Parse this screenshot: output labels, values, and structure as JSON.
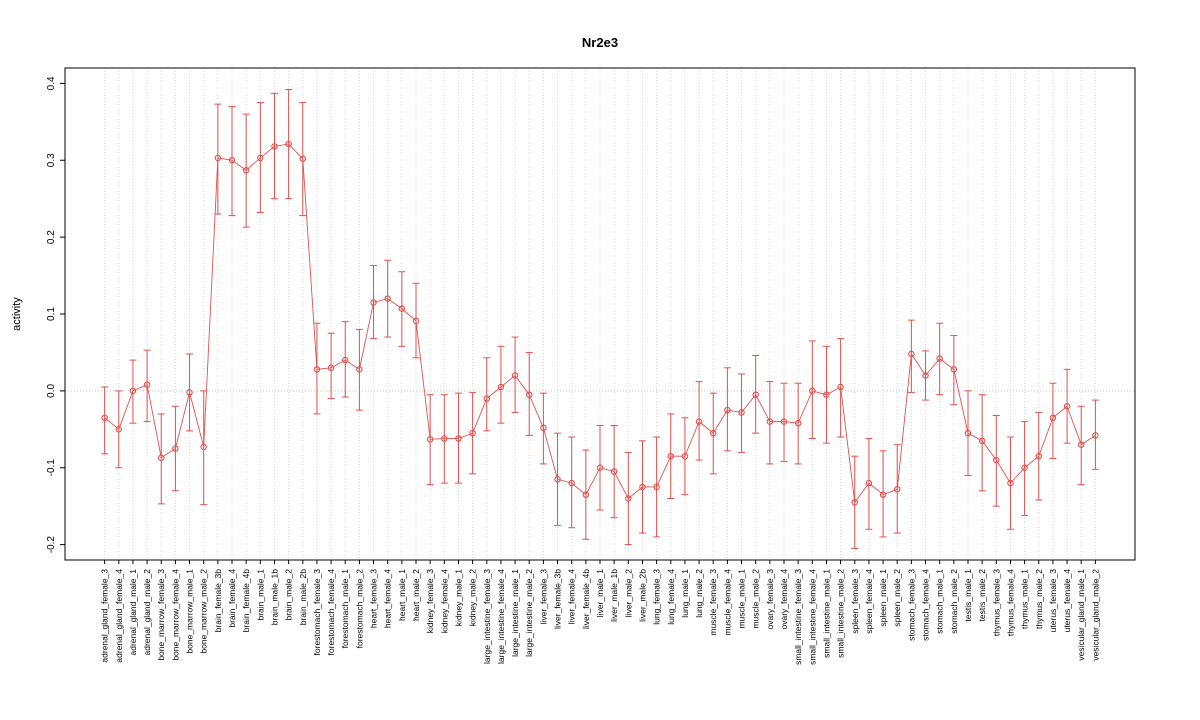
{
  "chart_data": {
    "type": "line",
    "title": "Nr2e3",
    "xlabel": "",
    "ylabel": "activity",
    "ylim": [
      -0.22,
      0.42
    ],
    "yticks": [
      "-0.2",
      "-0.1",
      "0.0",
      "0.1",
      "0.2",
      "0.3",
      "0.4"
    ],
    "legend": "none",
    "grid": "dotted vertical gridline per category; dotted horizontal line at y=0",
    "marker": "open-circle with error bars",
    "colors": {
      "series": "#e0514e",
      "grid": "#d6d6d6",
      "zero_line": "#c4c4c4",
      "axis": "#000000",
      "background": "#ffffff"
    },
    "points": [
      {
        "label": "adrenal_gland_female_3",
        "value": -0.035,
        "lo": -0.082,
        "hi": 0.005
      },
      {
        "label": "adrenal_gland_female_4",
        "value": -0.05,
        "lo": -0.1,
        "hi": 0.0
      },
      {
        "label": "adrenal_gland_male_1",
        "value": 0.0,
        "lo": -0.042,
        "hi": 0.04
      },
      {
        "label": "adrenal_gland_male_2",
        "value": 0.008,
        "lo": -0.04,
        "hi": 0.053
      },
      {
        "label": "bone_marrow_female_3",
        "value": -0.087,
        "lo": -0.147,
        "hi": -0.03
      },
      {
        "label": "bone_marrow_female_4",
        "value": -0.075,
        "lo": -0.13,
        "hi": -0.02
      },
      {
        "label": "bone_marrow_male_1",
        "value": -0.002,
        "lo": -0.052,
        "hi": 0.048
      },
      {
        "label": "bone_marrow_male_2",
        "value": -0.073,
        "lo": -0.148,
        "hi": 0.0
      },
      {
        "label": "brain_female_3b",
        "value": 0.303,
        "lo": 0.23,
        "hi": 0.373
      },
      {
        "label": "brain_female_4",
        "value": 0.3,
        "lo": 0.228,
        "hi": 0.37
      },
      {
        "label": "brain_female_4b",
        "value": 0.287,
        "lo": 0.213,
        "hi": 0.36
      },
      {
        "label": "brain_male_1",
        "value": 0.303,
        "lo": 0.232,
        "hi": 0.375
      },
      {
        "label": "brain_male_1b",
        "value": 0.318,
        "lo": 0.25,
        "hi": 0.387
      },
      {
        "label": "brain_male_2",
        "value": 0.321,
        "lo": 0.25,
        "hi": 0.392
      },
      {
        "label": "brain_male_2b",
        "value": 0.302,
        "lo": 0.228,
        "hi": 0.375
      },
      {
        "label": "forestomach_female_3",
        "value": 0.028,
        "lo": -0.03,
        "hi": 0.088
      },
      {
        "label": "forestomach_female_4",
        "value": 0.03,
        "lo": -0.01,
        "hi": 0.075
      },
      {
        "label": "forestomach_male_1",
        "value": 0.04,
        "lo": -0.008,
        "hi": 0.09
      },
      {
        "label": "forestomach_male_2",
        "value": 0.028,
        "lo": -0.025,
        "hi": 0.08
      },
      {
        "label": "heart_female_3",
        "value": 0.115,
        "lo": 0.068,
        "hi": 0.163
      },
      {
        "label": "heart_female_4",
        "value": 0.12,
        "lo": 0.07,
        "hi": 0.17
      },
      {
        "label": "heart_male_1",
        "value": 0.107,
        "lo": 0.058,
        "hi": 0.155
      },
      {
        "label": "heart_male_2",
        "value": 0.091,
        "lo": 0.043,
        "hi": 0.14
      },
      {
        "label": "kidney_female_3",
        "value": -0.063,
        "lo": -0.122,
        "hi": -0.005
      },
      {
        "label": "kidney_female_4",
        "value": -0.062,
        "lo": -0.12,
        "hi": -0.005
      },
      {
        "label": "kidney_male_1",
        "value": -0.062,
        "lo": -0.12,
        "hi": -0.003
      },
      {
        "label": "kidney_male_2",
        "value": -0.055,
        "lo": -0.108,
        "hi": -0.002
      },
      {
        "label": "large_intestine_female_3",
        "value": -0.01,
        "lo": -0.052,
        "hi": 0.043
      },
      {
        "label": "large_intestine_female_4",
        "value": 0.005,
        "lo": -0.042,
        "hi": 0.058
      },
      {
        "label": "large_intestine_male_1",
        "value": 0.02,
        "lo": -0.028,
        "hi": 0.07
      },
      {
        "label": "large_intestine_male_2",
        "value": -0.005,
        "lo": -0.058,
        "hi": 0.05
      },
      {
        "label": "liver_female_3",
        "value": -0.048,
        "lo": -0.095,
        "hi": -0.003
      },
      {
        "label": "liver_female_3b",
        "value": -0.115,
        "lo": -0.175,
        "hi": -0.055
      },
      {
        "label": "liver_female_4",
        "value": -0.12,
        "lo": -0.178,
        "hi": -0.06
      },
      {
        "label": "liver_female_4b",
        "value": -0.135,
        "lo": -0.193,
        "hi": -0.077
      },
      {
        "label": "liver_male_1",
        "value": -0.1,
        "lo": -0.155,
        "hi": -0.045
      },
      {
        "label": "liver_male_1b",
        "value": -0.105,
        "lo": -0.165,
        "hi": -0.045
      },
      {
        "label": "liver_male_2",
        "value": -0.14,
        "lo": -0.2,
        "hi": -0.08
      },
      {
        "label": "liver_male_2b",
        "value": -0.125,
        "lo": -0.185,
        "hi": -0.065
      },
      {
        "label": "lung_female_3",
        "value": -0.125,
        "lo": -0.19,
        "hi": -0.06
      },
      {
        "label": "lung_female_4",
        "value": -0.085,
        "lo": -0.14,
        "hi": -0.03
      },
      {
        "label": "lung_male_1",
        "value": -0.085,
        "lo": -0.135,
        "hi": -0.035
      },
      {
        "label": "lung_male_2",
        "value": -0.04,
        "lo": -0.09,
        "hi": 0.012
      },
      {
        "label": "muscle_female_3",
        "value": -0.055,
        "lo": -0.108,
        "hi": -0.003
      },
      {
        "label": "muscle_female_4",
        "value": -0.025,
        "lo": -0.078,
        "hi": 0.03
      },
      {
        "label": "muscle_male_1",
        "value": -0.028,
        "lo": -0.08,
        "hi": 0.022
      },
      {
        "label": "muscle_male_2",
        "value": -0.005,
        "lo": -0.055,
        "hi": 0.046
      },
      {
        "label": "ovary_female_3",
        "value": -0.04,
        "lo": -0.095,
        "hi": 0.012
      },
      {
        "label": "ovary_female_4",
        "value": -0.04,
        "lo": -0.092,
        "hi": 0.01
      },
      {
        "label": "small_intestine_female_3",
        "value": -0.042,
        "lo": -0.095,
        "hi": 0.01
      },
      {
        "label": "small_intestine_female_4",
        "value": 0.0,
        "lo": -0.062,
        "hi": 0.065
      },
      {
        "label": "small_intestine_male_1",
        "value": -0.005,
        "lo": -0.068,
        "hi": 0.058
      },
      {
        "label": "small_intestine_male_2",
        "value": 0.005,
        "lo": -0.06,
        "hi": 0.068
      },
      {
        "label": "spleen_female_3",
        "value": -0.145,
        "lo": -0.205,
        "hi": -0.085
      },
      {
        "label": "spleen_female_4",
        "value": -0.12,
        "lo": -0.18,
        "hi": -0.062
      },
      {
        "label": "spleen_male_1",
        "value": -0.135,
        "lo": -0.19,
        "hi": -0.078
      },
      {
        "label": "spleen_male_2",
        "value": -0.128,
        "lo": -0.185,
        "hi": -0.07
      },
      {
        "label": "stomach_female_3",
        "value": 0.048,
        "lo": -0.002,
        "hi": 0.092
      },
      {
        "label": "stomach_female_4",
        "value": 0.02,
        "lo": -0.012,
        "hi": 0.052
      },
      {
        "label": "stomach_male_1",
        "value": 0.042,
        "lo": -0.005,
        "hi": 0.088
      },
      {
        "label": "stomach_male_2",
        "value": 0.028,
        "lo": -0.018,
        "hi": 0.072
      },
      {
        "label": "testis_male_1",
        "value": -0.055,
        "lo": -0.11,
        "hi": 0.0
      },
      {
        "label": "testis_male_2",
        "value": -0.065,
        "lo": -0.13,
        "hi": -0.005
      },
      {
        "label": "thymus_female_3",
        "value": -0.09,
        "lo": -0.15,
        "hi": -0.032
      },
      {
        "label": "thymus_female_4",
        "value": -0.12,
        "lo": -0.18,
        "hi": -0.06
      },
      {
        "label": "thymus_male_1",
        "value": -0.1,
        "lo": -0.162,
        "hi": -0.04
      },
      {
        "label": "thymus_male_2",
        "value": -0.085,
        "lo": -0.142,
        "hi": -0.028
      },
      {
        "label": "uterus_female_3",
        "value": -0.035,
        "lo": -0.088,
        "hi": 0.01
      },
      {
        "label": "uterus_female_4",
        "value": -0.02,
        "lo": -0.068,
        "hi": 0.028
      },
      {
        "label": "vesicular_gland_male_1",
        "value": -0.07,
        "lo": -0.122,
        "hi": -0.02
      },
      {
        "label": "vesicular_gland_male_2",
        "value": -0.058,
        "lo": -0.102,
        "hi": -0.012
      }
    ]
  }
}
